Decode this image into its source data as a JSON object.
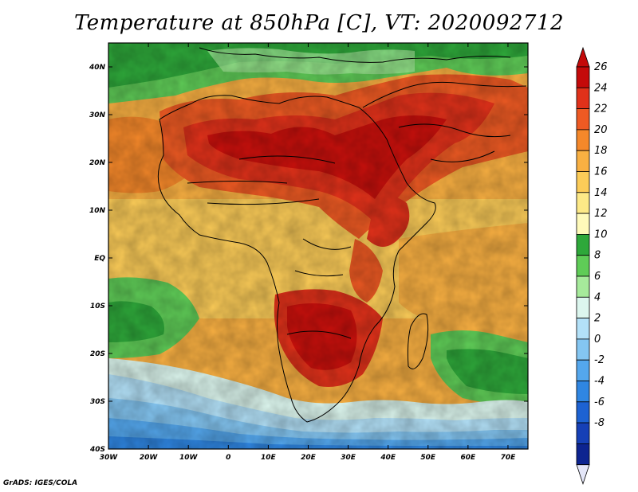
{
  "title": "Temperature at 850hPa [C], VT: 2020092712",
  "credit": "GrADS: IGES/COLA",
  "axes": {
    "x_ticks": [
      "30W",
      "20W",
      "10W",
      "0",
      "10E",
      "20E",
      "30E",
      "40E",
      "50E",
      "60E",
      "70E"
    ],
    "y_ticks": [
      "40N",
      "30N",
      "20N",
      "10N",
      "EQ",
      "10S",
      "20S",
      "30S",
      "40S"
    ],
    "lon_range": [
      -30,
      75
    ],
    "lat_range": [
      -40,
      45
    ]
  },
  "colorbar": {
    "labels": [
      "26",
      "24",
      "22",
      "20",
      "18",
      "16",
      "14",
      "12",
      "10",
      "8",
      "6",
      "4",
      "2",
      "0",
      "-2",
      "-4",
      "-6",
      "-8"
    ],
    "colors": [
      "#c40a0a",
      "#e0311a",
      "#ee5a23",
      "#f5882a",
      "#f9b042",
      "#fccc58",
      "#fde987",
      "#fffaba",
      "#2ea83a",
      "#5fcc57",
      "#a6ea9b",
      "#dcf6ee",
      "#b3e1f8",
      "#84c6f2",
      "#54a7ed",
      "#2f86e2",
      "#1d62d2",
      "#1640b6",
      "#0d2490",
      "#e4e6f8"
    ],
    "arrow_top_color": "#c40a0a",
    "arrow_bottom_color": "#e4e6f8"
  }
}
